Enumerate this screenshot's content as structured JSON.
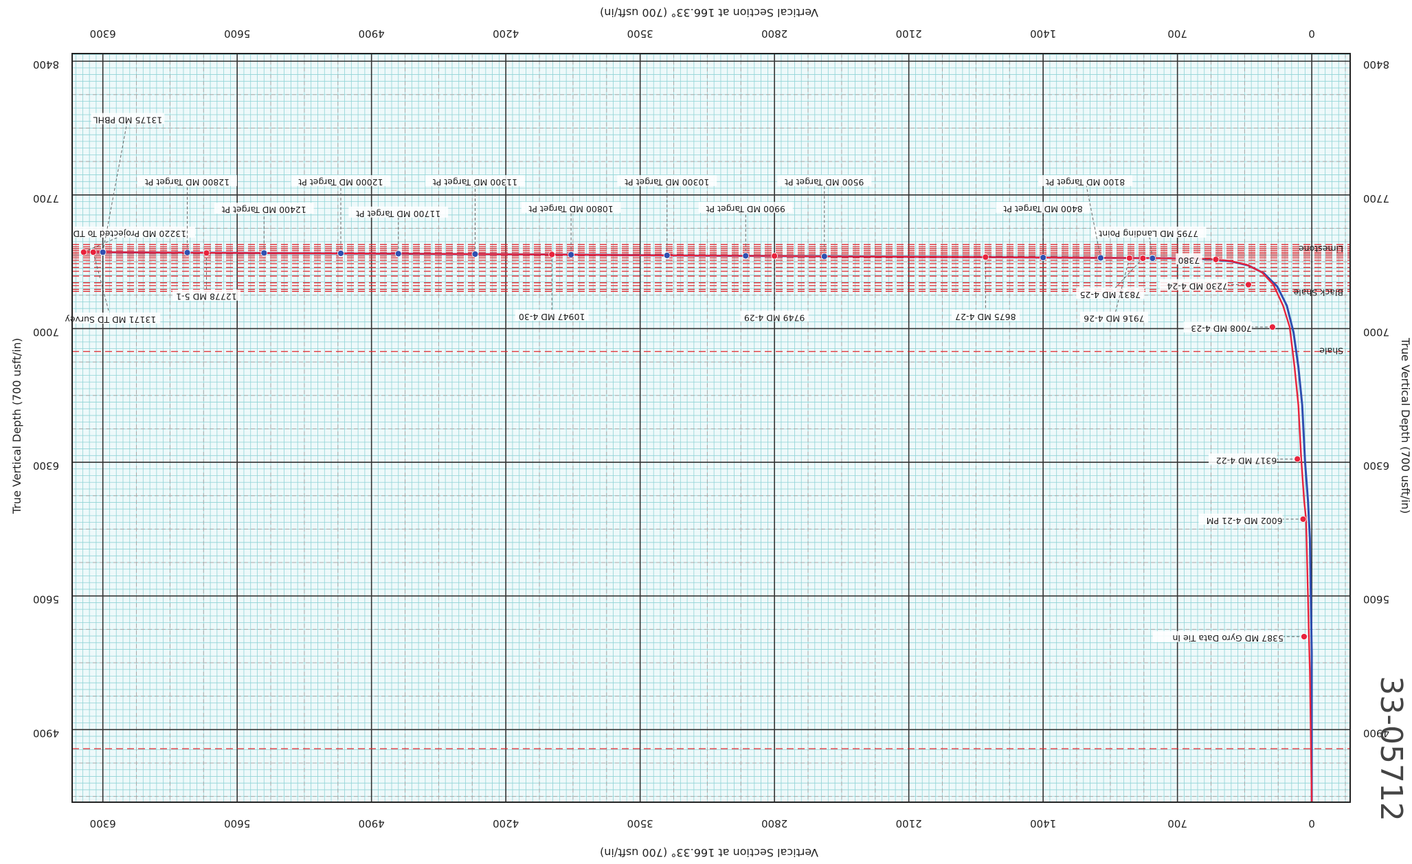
{
  "chart_data": {
    "type": "line",
    "xlabel": "Vertical Section at 166.33° (700 usft/in)",
    "ylabel": "True Vertical Depth (700 usft/in)",
    "x_ticks": [
      "6300",
      "5600",
      "4900",
      "4200",
      "3500",
      "2800",
      "2100",
      "1400",
      "700",
      "0"
    ],
    "y_ticks": [
      "8400",
      "7700",
      "7000",
      "6300",
      "5600",
      "4900"
    ],
    "xlim": [
      -200,
      6460
    ],
    "ylim": [
      4520,
      8440
    ],
    "x_reversed": true,
    "y_reversed": true,
    "grid": true,
    "handwriting": "33-05712",
    "formations": [
      {
        "name": "Limestone",
        "tvd": 7418
      },
      {
        "name": "Black Shale",
        "tvd": 7190
      },
      {
        "name": "Shale",
        "tvd": 6885
      }
    ],
    "formation_lines_tvd": [
      7440,
      7428,
      7418,
      7408,
      7398,
      7390,
      7380,
      7370,
      7358,
      7340,
      7320,
      7300,
      7275,
      7240,
      7225,
      7205,
      7195,
      6880,
      4800
    ],
    "series": [
      {
        "color": "#2f4fb0",
        "x": [
          0,
          0,
          5,
          10,
          20,
          35,
          50,
          70,
          95,
          130,
          180,
          250,
          330,
          420,
          520,
          620,
          700,
          850,
          1100,
          1400,
          1700,
          2100,
          2500,
          2800,
          3200,
          3600,
          4000,
          4400,
          4800,
          5200,
          5600,
          6000,
          6300,
          6370
        ],
        "y": [
          4520,
          5300,
          5600,
          5900,
          6100,
          6300,
          6600,
          6800,
          6980,
          7120,
          7220,
          7290,
          7330,
          7352,
          7362,
          7366,
          7368,
          7369,
          7370,
          7372,
          7374,
          7376,
          7378,
          7380,
          7382,
          7385,
          7388,
          7390,
          7392,
          7394,
          7396,
          7398,
          7400,
          7400
        ]
      },
      {
        "color": "#e8233c",
        "x": [
          0,
          10,
          15,
          20,
          25,
          30,
          40,
          55,
          70,
          90,
          115,
          150,
          200,
          260,
          340,
          430,
          520,
          600,
          700,
          850,
          1100,
          1400,
          1700,
          2100,
          2500,
          2800,
          3200,
          3600,
          4000,
          4400,
          4800,
          5200,
          5600,
          6000,
          6300,
          6400
        ],
        "y": [
          4520,
          5200,
          5387,
          5600,
          5800,
          6002,
          6100,
          6317,
          6600,
          6800,
          7008,
          7120,
          7230,
          7295,
          7335,
          7355,
          7363,
          7367,
          7368,
          7369,
          7370,
          7372,
          7374,
          7376,
          7378,
          7380,
          7382,
          7385,
          7388,
          7390,
          7392,
          7394,
          7396,
          7398,
          7400,
          7400
        ]
      }
    ],
    "annotations": [
      {
        "text": "5387 MD Gyro Data Tie In",
        "x": 40,
        "y": 5387,
        "color": "#e8233c"
      },
      {
        "text": "6002 MD 4-21 PM",
        "x": 45,
        "y": 6002,
        "color": "#e8233c"
      },
      {
        "text": "6317 MD 4-22",
        "x": 75,
        "y": 6317,
        "color": "#e8233c"
      },
      {
        "text": "7008 MD 4-23",
        "x": 205,
        "y": 7008,
        "color": "#e8233c"
      },
      {
        "text": "7230 MD 4-24",
        "x": 330,
        "y": 7230,
        "color": "#e8233c"
      },
      {
        "text": "7831 MD 4-25",
        "x": 880,
        "y": 7368,
        "color": "#e8233c",
        "tx": 1050,
        "ty": 7185
      },
      {
        "text": "7916 MD 4-26",
        "x": 950,
        "y": 7369,
        "color": "#e8233c",
        "tx": 1030,
        "ty": 7060
      },
      {
        "text": "8675 MD 4-27",
        "x": 1700,
        "y": 7374,
        "color": "#e8233c",
        "tx": 1700,
        "ty": 7070
      },
      {
        "text": "9749 MD 4-29",
        "x": 2800,
        "y": 7380,
        "color": "#e8233c",
        "tx": 2800,
        "ty": 7065
      },
      {
        "text": "10947 MD 4-30",
        "x": 3960,
        "y": 7388,
        "color": "#e8233c",
        "tx": 3960,
        "ty": 7070
      },
      {
        "text": "12778 MD 5-1",
        "x": 5760,
        "y": 7396,
        "color": "#e8233c",
        "tx": 5760,
        "ty": 7175
      },
      {
        "text": "13171 MD TD Survey",
        "x": 6350,
        "y": 7400,
        "color": "#e8233c",
        "tx": 6260,
        "ty": 7055
      },
      {
        "text": "13220 MD Projected To TD",
        "x": 6400,
        "y": 7400,
        "color": "#e8233c",
        "tx": 6160,
        "ty": 7505
      },
      {
        "text": "7795 MD Landing Point",
        "x": 830,
        "y": 7368,
        "color": "#2f4fb0",
        "tx": 850,
        "ty": 7505
      },
      {
        "text": "8400 MD Target Pt",
        "x": 1400,
        "y": 7372,
        "color": "#2f4fb0",
        "tx": 1400,
        "ty": 7635
      },
      {
        "text": "8100 MD Target Pt",
        "x": 1100,
        "y": 7370,
        "color": "#2f4fb0",
        "tx": 1180,
        "ty": 7775
      },
      {
        "text": "9500 MD Target Pt",
        "x": 2540,
        "y": 7378,
        "color": "#2f4fb0",
        "tx": 2540,
        "ty": 7775
      },
      {
        "text": "9900 MD Target Pt",
        "x": 2950,
        "y": 7381,
        "color": "#2f4fb0",
        "tx": 2950,
        "ty": 7635
      },
      {
        "text": "10300 MD Target Pt",
        "x": 3360,
        "y": 7383,
        "color": "#2f4fb0",
        "tx": 3360,
        "ty": 7775
      },
      {
        "text": "10800 MD Target Pt",
        "x": 3860,
        "y": 7387,
        "color": "#2f4fb0",
        "tx": 3860,
        "ty": 7635
      },
      {
        "text": "11300 MD Target Pt",
        "x": 4360,
        "y": 7390,
        "color": "#2f4fb0",
        "tx": 4360,
        "ty": 7775
      },
      {
        "text": "11700 MD Target Pt",
        "x": 4760,
        "y": 7392,
        "color": "#2f4fb0",
        "tx": 4760,
        "ty": 7610
      },
      {
        "text": "12000 MD Target Pt",
        "x": 5060,
        "y": 7394,
        "color": "#2f4fb0",
        "tx": 5060,
        "ty": 7775
      },
      {
        "text": "12400 MD Target Pt",
        "x": 5460,
        "y": 7396,
        "color": "#2f4fb0",
        "tx": 5460,
        "ty": 7630
      },
      {
        "text": "12800 MD Target Pt",
        "x": 5860,
        "y": 7398,
        "color": "#2f4fb0",
        "tx": 5860,
        "ty": 7775
      },
      {
        "text": "13175 MD PBHL",
        "x": 6300,
        "y": 7400,
        "color": "#2f4fb0",
        "tx": 6170,
        "ty": 8100
      },
      {
        "text": "7380",
        "x": 500,
        "y": 7362,
        "color": "#e8233c",
        "tx": 640,
        "ty": 7365
      }
    ]
  }
}
